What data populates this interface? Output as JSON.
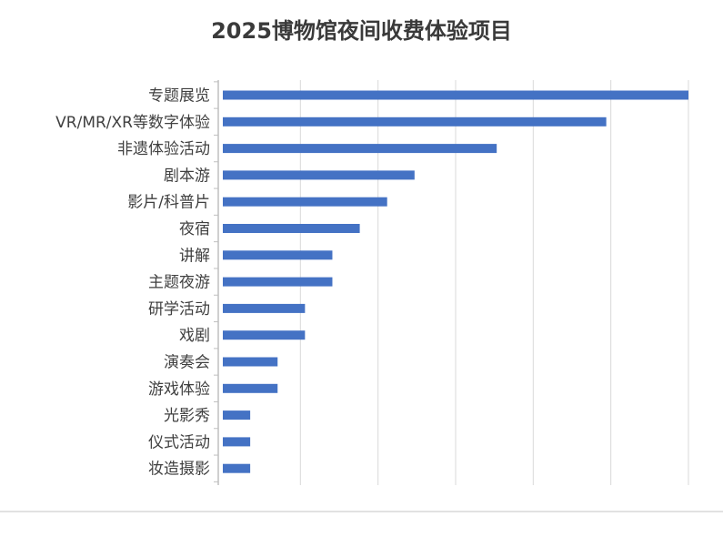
{
  "chart_data": {
    "type": "bar",
    "orientation": "horizontal",
    "title": "2025博物馆夜间收费体验项目",
    "xlabel": "",
    "ylabel": "",
    "categories": [
      "专题展览",
      "VR/MR/XR等数字体验",
      "非遗体验活动",
      "剧本游",
      "影片/科普片",
      "夜宿",
      "讲解",
      "主题夜游",
      "研学活动",
      "戏剧",
      "演奏会",
      "游戏体验",
      "光影秀",
      "仪式活动",
      "妆造摄影"
    ],
    "values": [
      17,
      14,
      10,
      7,
      6,
      5,
      4,
      4,
      3,
      3,
      2,
      2,
      1,
      1,
      1
    ],
    "xlim": [
      0,
      17
    ],
    "grid": "vertical",
    "legend": "none",
    "bar_color": "#4472c4",
    "grid_color": "#d9d9d9",
    "axis_color": "#bfbfbf"
  }
}
